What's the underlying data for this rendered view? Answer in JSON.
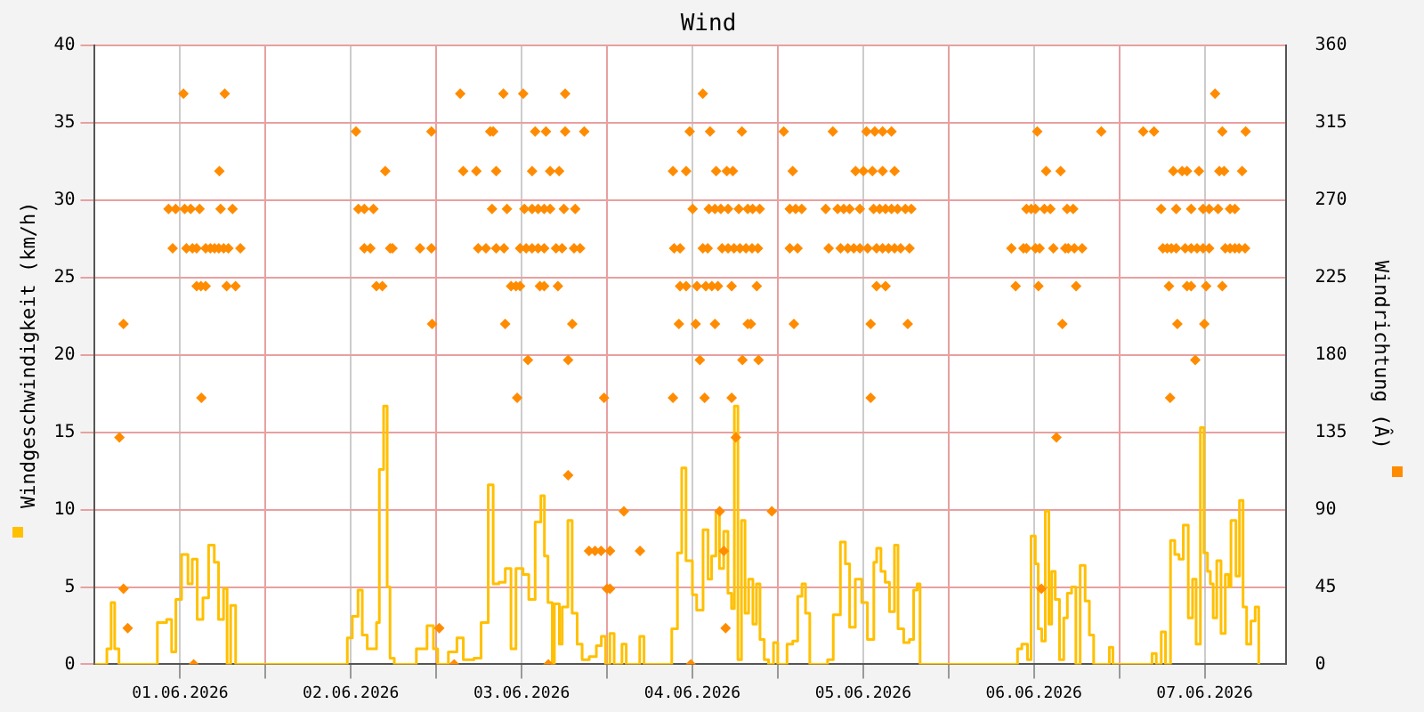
{
  "chart_data": {
    "type": "scatter",
    "title": "Wind",
    "ylabel": "Windgeschwindigkeit (km/h)",
    "y2label": "Windrichtung (Â)",
    "xlim": [
      "2026-06-01T00:00",
      "2026-06-07T23:30"
    ],
    "xticks": [
      {
        "value": "2026-06-01T12:00",
        "label": "01.06.2026"
      },
      {
        "value": "2026-06-02T00:00",
        "label": null
      },
      {
        "value": "2026-06-02T12:00",
        "label": "02.06.2026"
      },
      {
        "value": "2026-06-03T00:00",
        "label": null
      },
      {
        "value": "2026-06-03T12:00",
        "label": "03.06.2026"
      },
      {
        "value": "2026-06-04T00:00",
        "label": null
      },
      {
        "value": "2026-06-04T12:00",
        "label": "04.06.2026"
      },
      {
        "value": "2026-06-05T00:00",
        "label": null
      },
      {
        "value": "2026-06-05T12:00",
        "label": "05.06.2026"
      },
      {
        "value": "2026-06-06T00:00",
        "label": null
      },
      {
        "value": "2026-06-06T12:00",
        "label": "06.06.2026"
      },
      {
        "value": "2026-06-07T00:00",
        "label": null
      },
      {
        "value": "2026-06-07T12:00",
        "label": "07.06.2026"
      }
    ],
    "ylim": [
      0,
      40
    ],
    "yticks": [
      0,
      5,
      10,
      15,
      20,
      25,
      30,
      35,
      40
    ],
    "y2lim": [
      0,
      360
    ],
    "y2ticks": [
      0,
      45,
      90,
      135,
      180,
      225,
      270,
      315,
      360
    ],
    "grid": true,
    "series": [
      {
        "type": "step",
        "color": "#ffc000",
        "x": [
          "2026-06-01T00:00",
          "2026-06-01T01:42",
          "2026-06-01T02:18",
          "2026-06-01T02:48",
          "2026-06-01T03:24",
          "2026-06-01T08:48",
          "2026-06-01T10:06",
          "2026-06-01T10:48",
          "2026-06-01T11:24",
          "2026-06-01T12:12",
          "2026-06-01T13:06",
          "2026-06-01T13:42",
          "2026-06-01T14:24",
          "2026-06-01T15:12",
          "2026-06-01T16:00",
          "2026-06-01T16:48",
          "2026-06-01T17:24",
          "2026-06-01T18:06",
          "2026-06-01T18:36",
          "2026-06-01T19:06",
          "2026-06-01T19:48",
          "2026-06-02T11:30",
          "2026-06-02T12:12",
          "2026-06-02T13:00",
          "2026-06-02T13:36",
          "2026-06-02T14:18",
          "2026-06-02T15:36",
          "2026-06-02T16:00",
          "2026-06-02T16:36",
          "2026-06-02T17:06",
          "2026-06-02T17:30",
          "2026-06-02T18:06",
          "2026-06-02T21:12",
          "2026-06-02T22:42",
          "2026-06-02T23:36",
          "2026-06-03T00:12",
          "2026-06-03T01:42",
          "2026-06-03T02:54",
          "2026-06-03T03:48",
          "2026-06-03T05:18",
          "2026-06-03T06:18",
          "2026-06-03T07:18",
          "2026-06-03T08:00",
          "2026-06-03T08:48",
          "2026-06-03T09:42",
          "2026-06-03T10:30",
          "2026-06-03T11:12",
          "2026-06-03T12:12",
          "2026-06-03T13:00",
          "2026-06-03T13:54",
          "2026-06-03T14:42",
          "2026-06-03T15:12",
          "2026-06-03T15:42",
          "2026-06-03T16:18",
          "2026-06-03T16:36",
          "2026-06-03T17:18",
          "2026-06-03T17:42",
          "2026-06-03T18:30",
          "2026-06-03T19:06",
          "2026-06-03T19:48",
          "2026-06-03T20:30",
          "2026-06-03T21:30",
          "2026-06-03T22:30",
          "2026-06-03T23:12",
          "2026-06-03T23:48",
          "2026-06-04T00:24",
          "2026-06-04T01:00",
          "2026-06-04T02:06",
          "2026-06-04T02:42",
          "2026-06-04T04:36",
          "2026-06-04T05:12",
          "2026-06-04T09:06",
          "2026-06-04T09:54",
          "2026-06-04T10:30",
          "2026-06-04T11:06",
          "2026-06-04T12:00",
          "2026-06-04T12:36",
          "2026-06-04T13:30",
          "2026-06-04T14:12",
          "2026-06-04T14:42",
          "2026-06-04T15:18",
          "2026-06-04T15:48",
          "2026-06-04T16:24",
          "2026-06-04T17:00",
          "2026-06-04T17:30",
          "2026-06-04T17:54",
          "2026-06-04T18:24",
          "2026-06-04T18:54",
          "2026-06-04T19:24",
          "2026-06-04T19:54",
          "2026-06-04T20:30",
          "2026-06-04T21:00",
          "2026-06-04T21:30",
          "2026-06-04T22:06",
          "2026-06-04T22:42",
          "2026-06-04T23:24",
          "2026-06-05T00:00",
          "2026-06-05T01:18",
          "2026-06-05T02:06",
          "2026-06-05T02:48",
          "2026-06-05T03:24",
          "2026-06-05T03:54",
          "2026-06-05T04:30",
          "2026-06-05T07:00",
          "2026-06-05T07:48",
          "2026-06-05T08:48",
          "2026-06-05T09:30",
          "2026-06-05T10:06",
          "2026-06-05T10:54",
          "2026-06-05T11:48",
          "2026-06-05T12:36",
          "2026-06-05T13:30",
          "2026-06-05T13:54",
          "2026-06-05T14:30",
          "2026-06-05T15:06",
          "2026-06-05T15:42",
          "2026-06-05T16:24",
          "2026-06-05T16:54",
          "2026-06-05T17:42",
          "2026-06-05T18:30",
          "2026-06-05T19:06",
          "2026-06-05T19:36",
          "2026-06-05T20:00",
          "2026-06-06T09:42",
          "2026-06-06T10:18",
          "2026-06-06T11:06",
          "2026-06-06T11:36",
          "2026-06-06T12:12",
          "2026-06-06T12:36",
          "2026-06-06T13:06",
          "2026-06-06T13:36",
          "2026-06-06T14:06",
          "2026-06-06T14:30",
          "2026-06-06T15:00",
          "2026-06-06T15:36",
          "2026-06-06T16:12",
          "2026-06-06T16:42",
          "2026-06-06T17:18",
          "2026-06-06T17:54",
          "2026-06-06T18:30",
          "2026-06-06T19:12",
          "2026-06-06T19:48",
          "2026-06-06T20:24",
          "2026-06-06T22:36",
          "2026-06-06T23:06",
          "2026-06-07T04:36",
          "2026-06-07T05:12",
          "2026-06-07T05:54",
          "2026-06-07T06:30",
          "2026-06-07T07:12",
          "2026-06-07T07:48",
          "2026-06-07T08:24",
          "2026-06-07T09:00",
          "2026-06-07T09:42",
          "2026-06-07T10:18",
          "2026-06-07T10:48",
          "2026-06-07T11:24",
          "2026-06-07T11:54",
          "2026-06-07T12:24",
          "2026-06-07T12:48",
          "2026-06-07T13:12",
          "2026-06-07T13:42",
          "2026-06-07T14:18",
          "2026-06-07T14:54",
          "2026-06-07T15:24",
          "2026-06-07T15:42",
          "2026-06-07T16:24",
          "2026-06-07T16:54",
          "2026-06-07T17:24",
          "2026-06-07T17:54",
          "2026-06-07T18:30",
          "2026-06-07T19:06",
          "2026-06-07T19:36"
        ],
        "values": [
          0,
          1.0,
          4.0,
          1.0,
          0,
          2.7,
          2.9,
          0.8,
          4.2,
          7.1,
          5.2,
          6.8,
          2.9,
          4.3,
          7.7,
          6.6,
          2.9,
          4.9,
          0,
          3.8,
          0,
          1.7,
          3.1,
          4.8,
          1.9,
          1.0,
          2.7,
          12.6,
          16.7,
          5.0,
          0.4,
          0,
          1.0,
          2.5,
          1.0,
          0,
          0.8,
          1.7,
          0.3,
          0.4,
          2.7,
          11.6,
          5.2,
          5.3,
          6.2,
          1.0,
          6.2,
          5.8,
          4.2,
          9.2,
          10.9,
          7.0,
          4.0,
          0,
          3.9,
          1.3,
          3.7,
          9.3,
          3.3,
          1.3,
          0.3,
          0.5,
          1.2,
          1.8,
          0,
          2.0,
          0,
          1.3,
          0,
          1.8,
          0,
          2.3,
          7.2,
          12.7,
          6.7,
          4.5,
          3.5,
          8.7,
          5.5,
          7.0,
          9.8,
          6.2,
          8.6,
          4.6,
          3.6,
          16.7,
          0.3,
          9.3,
          3.3,
          5.5,
          2.6,
          5.2,
          1.6,
          0.3,
          0,
          1.4,
          0,
          1.3,
          1.5,
          4.4,
          5.2,
          3.3,
          0,
          0.3,
          3.2,
          7.9,
          6.5,
          2.4,
          5.5,
          4.0,
          1.6,
          6.6,
          7.5,
          6.0,
          5.3,
          3.4,
          7.7,
          2.3,
          1.4,
          1.6,
          4.8,
          5.2,
          0,
          1.0,
          1.3,
          0.3,
          8.3,
          6.5,
          2.3,
          1.5,
          9.9,
          2.6,
          6.0,
          4.2,
          0.3,
          3.0,
          4.6,
          5.0,
          0,
          6.4,
          4.1,
          1.9,
          0,
          1.1,
          0,
          0.7,
          0,
          2.1,
          0,
          8.0,
          7.1,
          6.8,
          9.0,
          3.0,
          5.5,
          1.3,
          15.3,
          7.2,
          6.0,
          5.2,
          3.0,
          6.7,
          2.0,
          5.8,
          5.0,
          9.3,
          5.7,
          10.6,
          3.7,
          1.3,
          2.8,
          3.7,
          0
        ]
      },
      {
        "type": "scatter",
        "axis": "y2",
        "color": "#ff8c00",
        "marker": "diamond",
        "x": [
          "2026-06-01T12:28",
          "2026-06-01T18:16",
          "2026-06-03T03:22",
          "2026-06-03T09:26",
          "2026-06-03T12:13",
          "2026-06-03T18:07",
          "2026-06-04T13:28",
          "2026-06-07T13:28",
          "2026-06-02T12:43",
          "2026-06-02T23:19",
          "2026-06-03T07:35",
          "2026-06-03T08:00",
          "2026-06-03T13:54",
          "2026-06-03T15:25",
          "2026-06-03T18:07",
          "2026-06-03T20:48",
          "2026-06-04T11:37",
          "2026-06-04T14:29",
          "2026-06-04T18:57",
          "2026-06-05T00:50",
          "2026-06-05T07:44",
          "2026-06-05T12:28",
          "2026-06-05T13:38",
          "2026-06-05T14:44",
          "2026-06-05T15:59",
          "2026-06-06T12:28",
          "2026-06-06T21:28",
          "2026-06-07T03:22",
          "2026-06-07T04:53",
          "2026-06-07T14:29",
          "2026-06-07T17:46",
          "2026-06-01T17:31",
          "2026-06-02T16:50",
          "2026-06-03T03:47",
          "2026-06-03T05:38",
          "2026-06-03T08:25",
          "2026-06-03T13:28",
          "2026-06-03T16:00",
          "2026-06-03T17:16",
          "2026-06-04T09:16",
          "2026-06-04T11:07",
          "2026-06-04T15:20",
          "2026-06-04T16:50",
          "2026-06-04T17:41",
          "2026-06-05T02:06",
          "2026-06-05T10:56",
          "2026-06-05T12:02",
          "2026-06-05T13:18",
          "2026-06-05T14:44",
          "2026-06-05T16:25",
          "2026-06-06T13:43",
          "2026-06-06T15:45",
          "2026-06-07T07:35",
          "2026-06-07T08:50",
          "2026-06-07T09:31",
          "2026-06-07T11:12",
          "2026-06-07T14:04",
          "2026-06-07T14:44",
          "2026-06-07T17:16",
          "2026-06-01T10:22",
          "2026-06-01T11:22",
          "2026-06-01T12:38",
          "2026-06-01T13:29",
          "2026-06-01T14:44",
          "2026-06-01T17:41",
          "2026-06-01T19:22",
          "2026-06-02T13:03",
          "2026-06-02T13:53",
          "2026-06-02T15:10",
          "2026-06-03T07:50",
          "2026-06-03T09:56",
          "2026-06-03T12:23",
          "2026-06-03T13:28",
          "2026-06-03T14:19",
          "2026-06-03T15:10",
          "2026-06-03T16:00",
          "2026-06-03T17:56",
          "2026-06-03T19:32",
          "2026-06-04T12:02",
          "2026-06-04T14:19",
          "2026-06-04T15:10",
          "2026-06-04T16:00",
          "2026-06-04T17:01",
          "2026-06-04T18:31",
          "2026-06-04T19:47",
          "2026-06-04T20:28",
          "2026-06-04T21:28",
          "2026-06-05T01:41",
          "2026-06-05T02:31",
          "2026-06-05T03:22",
          "2026-06-05T06:44",
          "2026-06-05T08:25",
          "2026-06-05T09:16",
          "2026-06-05T10:06",
          "2026-06-05T11:32",
          "2026-06-05T13:28",
          "2026-06-05T14:19",
          "2026-06-05T15:09",
          "2026-06-05T15:59",
          "2026-06-05T16:50",
          "2026-06-05T17:56",
          "2026-06-05T18:46",
          "2026-06-06T10:57",
          "2026-06-06T11:37",
          "2026-06-06T12:13",
          "2026-06-06T13:28",
          "2026-06-06T14:19",
          "2026-06-06T16:40",
          "2026-06-06T17:31",
          "2026-06-07T05:53",
          "2026-06-07T08:00",
          "2026-06-07T10:06",
          "2026-06-07T11:47",
          "2026-06-07T12:38",
          "2026-06-07T13:53",
          "2026-06-07T15:34",
          "2026-06-07T16:15",
          "2026-06-01T10:57",
          "2026-06-01T12:53",
          "2026-06-01T13:44",
          "2026-06-01T14:19",
          "2026-06-01T15:35",
          "2026-06-01T16:15",
          "2026-06-01T16:50",
          "2026-06-01T17:26",
          "2026-06-01T18:07",
          "2026-06-01T18:47",
          "2026-06-01T20:28",
          "2026-06-02T13:53",
          "2026-06-02T14:44",
          "2026-06-02T17:31",
          "2026-06-02T17:51",
          "2026-06-02T21:43",
          "2026-06-02T23:19",
          "2026-06-03T05:53",
          "2026-06-03T06:59",
          "2026-06-03T08:25",
          "2026-06-03T09:31",
          "2026-06-03T11:47",
          "2026-06-03T12:38",
          "2026-06-03T13:28",
          "2026-06-03T14:19",
          "2026-06-03T15:10",
          "2026-06-03T16:50",
          "2026-06-03T17:41",
          "2026-06-03T19:22",
          "2026-06-03T20:13",
          "2026-06-04T09:26",
          "2026-06-04T10:16",
          "2026-06-04T13:28",
          "2026-06-04T14:09",
          "2026-06-04T16:10",
          "2026-06-04T17:01",
          "2026-06-04T17:51",
          "2026-06-04T18:41",
          "2026-06-04T19:32",
          "2026-06-04T20:23",
          "2026-06-04T21:13",
          "2026-06-05T01:41",
          "2026-06-05T02:47",
          "2026-06-05T07:09",
          "2026-06-05T08:50",
          "2026-06-05T09:51",
          "2026-06-05T10:41",
          "2026-06-05T11:32",
          "2026-06-05T12:38",
          "2026-06-05T13:53",
          "2026-06-05T14:44",
          "2026-06-05T15:34",
          "2026-06-05T16:25",
          "2026-06-05T17:16",
          "2026-06-05T18:31",
          "2026-06-06T08:50",
          "2026-06-06T10:32",
          "2026-06-06T10:57",
          "2026-06-06T12:13",
          "2026-06-06T12:48",
          "2026-06-06T14:44",
          "2026-06-06T16:25",
          "2026-06-06T16:50",
          "2026-06-06T17:41",
          "2026-06-06T18:47",
          "2026-06-07T06:08",
          "2026-06-07T06:44",
          "2026-06-07T07:19",
          "2026-06-07T08:00",
          "2026-06-07T09:16",
          "2026-06-07T10:06",
          "2026-06-07T10:56",
          "2026-06-07T11:47",
          "2026-06-07T12:38",
          "2026-06-07T14:54",
          "2026-06-07T15:34",
          "2026-06-07T16:15",
          "2026-06-07T16:50",
          "2026-06-07T17:41",
          "2026-06-01T14:19",
          "2026-06-01T14:55",
          "2026-06-01T15:35",
          "2026-06-01T18:32",
          "2026-06-01T19:47",
          "2026-06-02T15:35",
          "2026-06-02T16:25",
          "2026-06-03T10:31",
          "2026-06-03T11:12",
          "2026-06-03T11:47",
          "2026-06-03T14:34",
          "2026-06-03T15:10",
          "2026-06-03T17:06",
          "2026-06-04T10:16",
          "2026-06-04T11:07",
          "2026-06-04T12:38",
          "2026-06-04T13:53",
          "2026-06-04T14:44",
          "2026-06-04T15:35",
          "2026-06-04T17:31",
          "2026-06-04T21:03",
          "2026-06-05T13:53",
          "2026-06-05T15:09",
          "2026-06-06T09:26",
          "2026-06-06T12:38",
          "2026-06-06T17:56",
          "2026-06-07T06:59",
          "2026-06-07T09:31",
          "2026-06-07T10:06",
          "2026-06-07T12:13",
          "2026-06-07T14:29",
          "2026-06-01T04:02",
          "2026-06-02T23:25",
          "2026-06-03T09:41",
          "2026-06-03T19:07",
          "2026-06-04T10:06",
          "2026-06-04T12:28",
          "2026-06-04T15:10",
          "2026-06-04T19:47",
          "2026-06-04T20:13",
          "2026-06-05T02:16",
          "2026-06-05T13:03",
          "2026-06-05T18:16",
          "2026-06-06T16:00",
          "2026-06-07T08:10",
          "2026-06-07T11:57",
          "2026-06-03T12:53",
          "2026-06-03T18:32",
          "2026-06-04T13:03",
          "2026-06-04T19:02",
          "2026-06-04T21:18",
          "2026-06-07T10:41",
          "2026-06-01T14:59",
          "2026-06-03T11:22",
          "2026-06-03T23:35",
          "2026-06-04T09:16",
          "2026-06-04T13:43",
          "2026-06-04T17:31",
          "2026-06-05T13:03",
          "2026-06-07T07:09",
          "2026-06-01T03:28",
          "2026-06-04T18:06",
          "2026-06-06T15:10",
          "2026-06-03T18:32",
          "2026-06-04T02:22",
          "2026-06-04T15:50",
          "2026-06-04T23:10",
          "2026-06-03T21:28",
          "2026-06-03T22:19",
          "2026-06-03T23:10",
          "2026-06-04T00:25",
          "2026-06-04T04:38",
          "2026-06-04T16:25",
          "2026-06-01T04:02",
          "2026-06-04T00:00",
          "2026-06-04T00:25",
          "2026-06-06T13:03",
          "2026-06-01T04:38",
          "2026-06-03T00:25",
          "2026-06-04T16:40",
          "2026-06-01T13:54",
          "2026-06-03T02:31",
          "2026-06-03T15:45",
          "2026-06-04T11:47"
        ],
        "values": [
          332,
          332,
          332,
          332,
          332,
          332,
          332,
          332,
          310,
          310,
          310,
          310,
          310,
          310,
          310,
          310,
          310,
          310,
          310,
          310,
          310,
          310,
          310,
          310,
          310,
          310,
          310,
          310,
          310,
          310,
          310,
          287,
          287,
          287,
          287,
          287,
          287,
          287,
          287,
          287,
          287,
          287,
          287,
          287,
          287,
          287,
          287,
          287,
          287,
          287,
          287,
          287,
          287,
          287,
          287,
          287,
          287,
          287,
          287,
          265,
          265,
          265,
          265,
          265,
          265,
          265,
          265,
          265,
          265,
          265,
          265,
          265,
          265,
          265,
          265,
          265,
          265,
          265,
          265,
          265,
          265,
          265,
          265,
          265,
          265,
          265,
          265,
          265,
          265,
          265,
          265,
          265,
          265,
          265,
          265,
          265,
          265,
          265,
          265,
          265,
          265,
          265,
          265,
          265,
          265,
          265,
          265,
          265,
          265,
          265,
          265,
          265,
          265,
          265,
          265,
          265,
          265,
          242,
          242,
          242,
          242,
          242,
          242,
          242,
          242,
          242,
          242,
          242,
          242,
          242,
          242,
          242,
          242,
          242,
          242,
          242,
          242,
          242,
          242,
          242,
          242,
          242,
          242,
          242,
          242,
          242,
          242,
          242,
          242,
          242,
          242,
          242,
          242,
          242,
          242,
          242,
          242,
          242,
          242,
          242,
          242,
          242,
          242,
          242,
          242,
          242,
          242,
          242,
          242,
          242,
          242,
          242,
          242,
          242,
          242,
          242,
          242,
          242,
          242,
          242,
          242,
          242,
          242,
          242,
          242,
          242,
          242,
          242,
          242,
          242,
          242,
          242,
          242,
          242,
          242,
          242,
          220,
          220,
          220,
          220,
          220,
          220,
          220,
          220,
          220,
          220,
          220,
          220,
          220,
          220,
          220,
          220,
          220,
          220,
          220,
          220,
          220,
          220,
          220,
          220,
          220,
          220,
          220,
          220,
          220,
          220,
          220,
          198,
          198,
          198,
          198,
          198,
          198,
          198,
          198,
          198,
          198,
          198,
          198,
          198,
          198,
          198,
          177,
          177,
          177,
          177,
          177,
          177,
          155,
          155,
          155,
          155,
          155,
          155,
          155,
          155,
          132,
          132,
          132,
          110,
          89,
          89,
          89,
          66,
          66,
          66,
          66,
          66,
          66,
          44,
          44,
          44,
          44,
          21,
          21,
          21,
          0,
          0,
          0,
          0
        ]
      }
    ]
  }
}
